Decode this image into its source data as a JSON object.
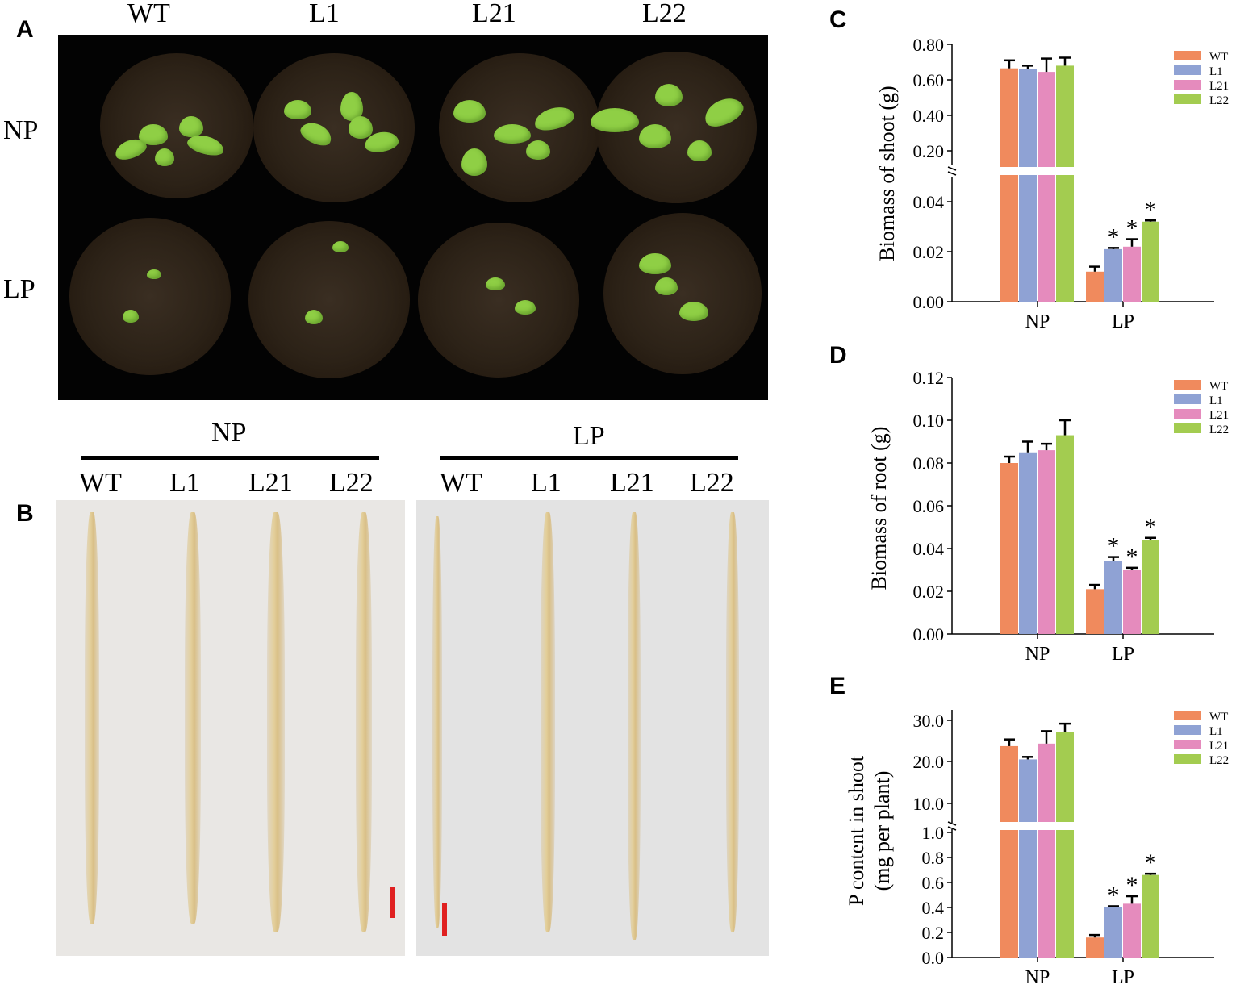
{
  "panels": {
    "A": {
      "letter": "A",
      "columns": [
        "WT",
        "L1",
        "L21",
        "L22"
      ],
      "rows": [
        "NP",
        "LP"
      ]
    },
    "B": {
      "letter": "B",
      "groups": [
        {
          "title": "NP",
          "columns": [
            "WT",
            "L1",
            "L21",
            "L22"
          ]
        },
        {
          "title": "LP",
          "columns": [
            "WT",
            "L1",
            "L21",
            "L22"
          ]
        }
      ]
    }
  },
  "chart_data": [
    {
      "panel": "C",
      "type": "bar",
      "ylabel": "Biomass of shoot (g)",
      "categories": [
        "NP",
        "LP"
      ],
      "axis_break": true,
      "upper_ticks": [
        "0.80",
        "0.60",
        "0.40",
        "0.20"
      ],
      "lower_ticks": [
        "0.04",
        "0.02",
        "0.00"
      ],
      "series": [
        {
          "name": "WT",
          "color": "#f08a5d",
          "values": [
            0.665,
            0.012
          ],
          "errors": [
            0.045,
            0.002
          ]
        },
        {
          "name": "L1",
          "color": "#8fa2d4",
          "values": [
            0.66,
            0.021
          ],
          "errors": [
            0.02,
            0.0005
          ]
        },
        {
          "name": "L21",
          "color": "#e58bbd",
          "values": [
            0.645,
            0.022
          ],
          "errors": [
            0.075,
            0.003
          ]
        },
        {
          "name": "L22",
          "color": "#a3cc50",
          "values": [
            0.68,
            0.032
          ],
          "errors": [
            0.045,
            0.0005
          ]
        }
      ],
      "significance": [
        "",
        "*",
        "*",
        "*"
      ]
    },
    {
      "panel": "D",
      "type": "bar",
      "ylabel": "Biomass of root (g)",
      "categories": [
        "NP",
        "LP"
      ],
      "ticks": [
        "0.12",
        "0.10",
        "0.08",
        "0.06",
        "0.04",
        "0.02",
        "0.00"
      ],
      "ylim": [
        0,
        0.12
      ],
      "series": [
        {
          "name": "WT",
          "color": "#f08a5d",
          "values": [
            0.08,
            0.021
          ],
          "errors": [
            0.003,
            0.002
          ]
        },
        {
          "name": "L1",
          "color": "#8fa2d4",
          "values": [
            0.085,
            0.034
          ],
          "errors": [
            0.005,
            0.002
          ]
        },
        {
          "name": "L21",
          "color": "#e58bbd",
          "values": [
            0.086,
            0.03
          ],
          "errors": [
            0.003,
            0.001
          ]
        },
        {
          "name": "L22",
          "color": "#a3cc50",
          "values": [
            0.093,
            0.044
          ],
          "errors": [
            0.007,
            0.001
          ]
        }
      ],
      "significance": [
        "",
        "*",
        "*",
        "*"
      ]
    },
    {
      "panel": "E",
      "type": "bar",
      "ylabel_lines": [
        "P content in shoot",
        "(mg per plant)"
      ],
      "categories": [
        "NP",
        "LP"
      ],
      "axis_break": true,
      "upper_ticks": [
        "30.0",
        "20.0",
        "10.0"
      ],
      "lower_ticks": [
        "1.0",
        "0.8",
        "0.6",
        "0.4",
        "0.2",
        "0.0"
      ],
      "series": [
        {
          "name": "WT",
          "color": "#f08a5d",
          "values": [
            23.8,
            0.16
          ],
          "errors": [
            1.6,
            0.02
          ]
        },
        {
          "name": "L1",
          "color": "#8fa2d4",
          "values": [
            20.6,
            0.4
          ],
          "errors": [
            0.6,
            0.01
          ]
        },
        {
          "name": "L21",
          "color": "#e58bbd",
          "values": [
            24.4,
            0.43
          ],
          "errors": [
            3.0,
            0.06
          ]
        },
        {
          "name": "L22",
          "color": "#a3cc50",
          "values": [
            27.2,
            0.66
          ],
          "errors": [
            2.0,
            0.01
          ]
        }
      ],
      "significance": [
        "",
        "*",
        "*",
        "*"
      ]
    }
  ]
}
